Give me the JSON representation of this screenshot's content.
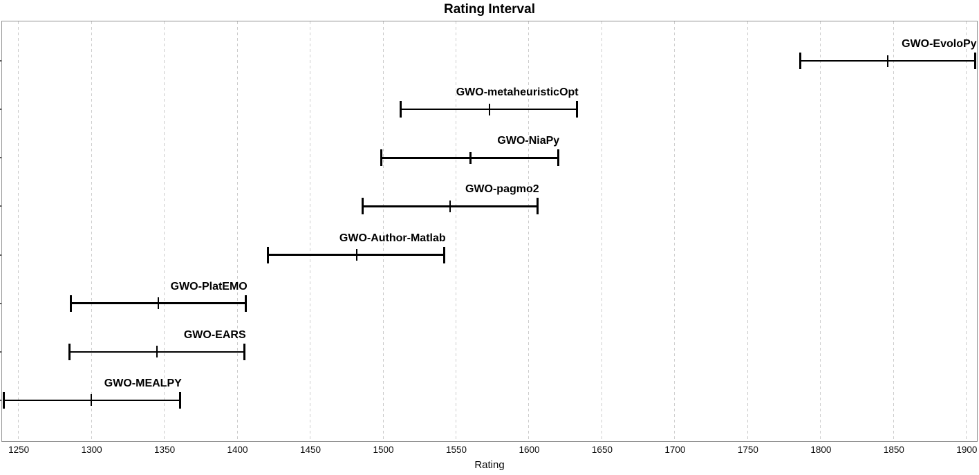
{
  "title": "Rating Interval",
  "axes": {
    "xlabel": "Rating"
  },
  "chart_data": {
    "type": "scatter",
    "variant": "horizontal_interval_error_bars",
    "title": "Rating Interval",
    "xlabel": "Rating",
    "ylabel": "",
    "xlim": [
      1238.8,
      1906.7
    ],
    "xticks": [
      1250,
      1300,
      1350,
      1400,
      1450,
      1500,
      1550,
      1600,
      1650,
      1700,
      1750,
      1800,
      1850,
      1900
    ],
    "grid": "vertical-dashed",
    "legend": "none",
    "series": [
      {
        "name": "GWO-EvoloPy",
        "low": 1786,
        "mid": 1846,
        "high": 1906
      },
      {
        "name": "GWO-metaheuristicOpt",
        "low": 1512,
        "mid": 1573,
        "high": 1633
      },
      {
        "name": "GWO-NiaPy",
        "low": 1499,
        "mid": 1560,
        "high": 1620
      },
      {
        "name": "GWO-pagmo2",
        "low": 1486,
        "mid": 1546,
        "high": 1606
      },
      {
        "name": "GWO-Author-Matlab",
        "low": 1421,
        "mid": 1482,
        "high": 1542
      },
      {
        "name": "GWO-PlatEMO",
        "low": 1286,
        "mid": 1346,
        "high": 1406
      },
      {
        "name": "GWO-EARS",
        "low": 1285,
        "mid": 1345,
        "high": 1405
      },
      {
        "name": "GWO-MEALPY",
        "low": 1240,
        "mid": 1300,
        "high": 1361
      }
    ]
  },
  "colors": {
    "bar": "#000000",
    "grid": "#cccccc",
    "border": "#909090",
    "text": "#000000"
  }
}
